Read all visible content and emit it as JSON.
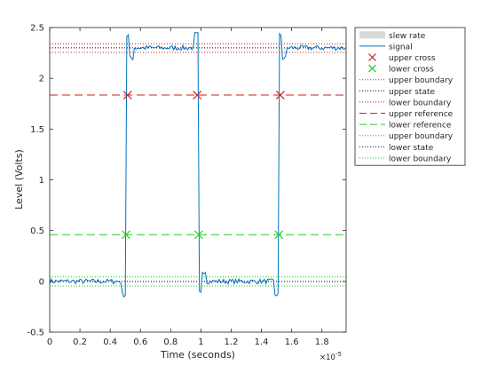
{
  "chart_data": {
    "type": "line",
    "title": "",
    "xlabel": "Time (seconds)",
    "ylabel": "Level (Volts)",
    "x_exponent_label": "×10",
    "x_exponent_value": "-5",
    "xlim": [
      0,
      1.96
    ],
    "ylim": [
      -0.5,
      2.5
    ],
    "xticks": [
      "0",
      "0.2",
      "0.4",
      "0.6",
      "0.8",
      "1",
      "1.2",
      "1.4",
      "1.6",
      "1.8"
    ],
    "yticks": [
      "-0.5",
      "0",
      "0.5",
      "1",
      "1.5",
      "2",
      "2.5"
    ],
    "grid": false,
    "legend_position": "top-right outside",
    "colors": {
      "signal": "#0072bd",
      "upper": "#cc2222",
      "lower": "#22cc22",
      "state": "#000000",
      "slew": "#d9d9d9",
      "axis": "#262626"
    },
    "signal": {
      "name": "signal",
      "high_level": 2.3,
      "low_level": 0.0,
      "transitions": [
        {
          "t": 0.505,
          "dir": "rise"
        },
        {
          "t": 0.985,
          "dir": "fall"
        },
        {
          "t": 1.515,
          "dir": "rise"
        }
      ]
    },
    "upper_state": 2.3,
    "lower_state": 0.0,
    "upper_boundary_high": 2.34,
    "upper_boundary_low": 2.255,
    "lower_boundary_high": 0.045,
    "lower_boundary_low": -0.045,
    "upper_reference": 1.835,
    "lower_reference": 0.46,
    "upper_cross": [
      {
        "x": 0.515,
        "y": 1.835
      },
      {
        "x": 0.975,
        "y": 1.835
      },
      {
        "x": 1.525,
        "y": 1.835
      }
    ],
    "lower_cross": [
      {
        "x": 0.505,
        "y": 0.46
      },
      {
        "x": 0.985,
        "y": 0.46
      },
      {
        "x": 1.515,
        "y": 0.46
      }
    ],
    "legend": [
      {
        "label": "slew rate",
        "kind": "patch",
        "color": "#d9d9d9"
      },
      {
        "label": "signal",
        "kind": "line",
        "color": "#0072bd"
      },
      {
        "label": "upper cross",
        "kind": "x",
        "color": "#cc2222"
      },
      {
        "label": "lower cross",
        "kind": "x",
        "color": "#22cc22"
      },
      {
        "label": "upper boundary",
        "kind": "dotted",
        "color": "#cc2222"
      },
      {
        "label": "upper state",
        "kind": "dotted",
        "color": "#000000"
      },
      {
        "label": "lower boundary",
        "kind": "dotted",
        "color": "#cc2222"
      },
      {
        "label": "upper reference",
        "kind": "dashed",
        "color": "#cc2222"
      },
      {
        "label": "lower reference",
        "kind": "dashed",
        "color": "#22cc22"
      },
      {
        "label": "upper boundary",
        "kind": "dotted",
        "color": "#22cc22"
      },
      {
        "label": "lower state",
        "kind": "dotted",
        "color": "#000000"
      },
      {
        "label": "lower boundary",
        "kind": "dotted",
        "color": "#22cc22"
      }
    ]
  }
}
